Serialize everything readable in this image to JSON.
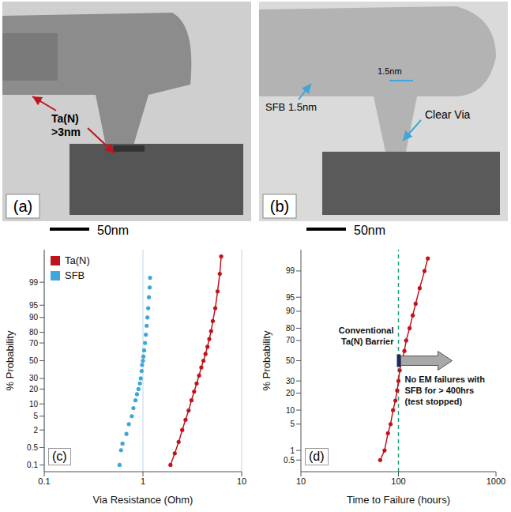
{
  "images": [
    {
      "label": "(a)",
      "scale_bar": "50nm",
      "annotations": [
        {
          "lines": [
            "Ta(N)",
            ">3nm"
          ]
        }
      ]
    },
    {
      "label": "(b)",
      "scale_bar": "50nm",
      "annotations": [
        {
          "lines": [
            "SFB 1.5nm"
          ]
        },
        {
          "lines": [
            "1.5nm"
          ]
        },
        {
          "lines": [
            "Clear Via"
          ]
        }
      ]
    }
  ],
  "chart_data": [
    {
      "type": "probability",
      "panel_label": "(c)",
      "xlabel": "Via Resistance (Ohm)",
      "ylabel": "% Probability",
      "log": "x",
      "xlim": [
        0.1,
        10
      ],
      "xticks": [
        0.1,
        1,
        10
      ],
      "ylim": [
        0.05,
        99.95
      ],
      "yticks": [
        0.1,
        0.5,
        2,
        5,
        10,
        20,
        30,
        50,
        70,
        80,
        90,
        95,
        99
      ],
      "grid": true,
      "legend": "upper left",
      "series": [
        {
          "name": "Ta(N)",
          "color": "#c0141c",
          "marker": "circle",
          "line_style": "solid",
          "x": [
            1.9,
            2.1,
            2.3,
            2.5,
            2.7,
            2.9,
            3.1,
            3.3,
            3.5,
            3.7,
            3.9,
            4.1,
            4.3,
            4.5,
            4.7,
            4.9,
            5.1,
            5.4,
            5.7,
            6.0,
            6.2
          ],
          "values": [
            0.1,
            0.3,
            0.8,
            2,
            4,
            7,
            12,
            18,
            25,
            33,
            42,
            50,
            58,
            66,
            74,
            81,
            88,
            94,
            98,
            99.5,
            99.9
          ]
        },
        {
          "name": "SFB",
          "color": "#3ea6d8",
          "marker": "circle",
          "x": [
            0.58,
            0.6,
            0.62,
            0.68,
            0.72,
            0.77,
            0.8,
            0.84,
            0.87,
            0.9,
            0.93,
            0.95,
            0.97,
            0.98,
            1.0,
            1.01,
            1.03,
            1.05,
            1.07,
            1.09,
            1.11,
            1.13,
            1.15,
            1.17,
            1.18
          ],
          "values": [
            0.1,
            0.4,
            0.7,
            1.5,
            3,
            5,
            8,
            12,
            16,
            20,
            25,
            30,
            38,
            45,
            50,
            55,
            62,
            70,
            78,
            85,
            90,
            94,
            97,
            98.5,
            99.3
          ]
        }
      ]
    },
    {
      "type": "probability",
      "panel_label": "(d)",
      "xlabel": "Time to Failure (hours)",
      "ylabel": "% Probability",
      "log": "x",
      "xlim": [
        10,
        1000
      ],
      "xticks": [
        10,
        100,
        1000
      ],
      "ylim": [
        0.2,
        99.8
      ],
      "yticks": [
        0.5,
        1,
        5,
        10,
        20,
        30,
        50,
        70,
        80,
        90,
        95,
        99
      ],
      "reference_line": {
        "x": 100,
        "color": "#1aa37a",
        "line_style": "dashed"
      },
      "annotations": [
        "Conventional Ta(N) Barrier",
        "No EM failures with SFB for > 400hrs (test stopped)"
      ],
      "series": [
        {
          "color": "#c0141c",
          "marker": "circle",
          "line_style": "solid",
          "x": [
            65,
            72,
            78,
            83,
            88,
            93,
            97,
            100,
            103,
            108,
            115,
            120,
            130,
            140,
            150,
            165,
            185,
            200
          ],
          "values": [
            0.5,
            1,
            3,
            5,
            10,
            15,
            22,
            30,
            40,
            50,
            60,
            70,
            80,
            88,
            93,
            97,
            99,
            99.6
          ]
        }
      ]
    }
  ]
}
